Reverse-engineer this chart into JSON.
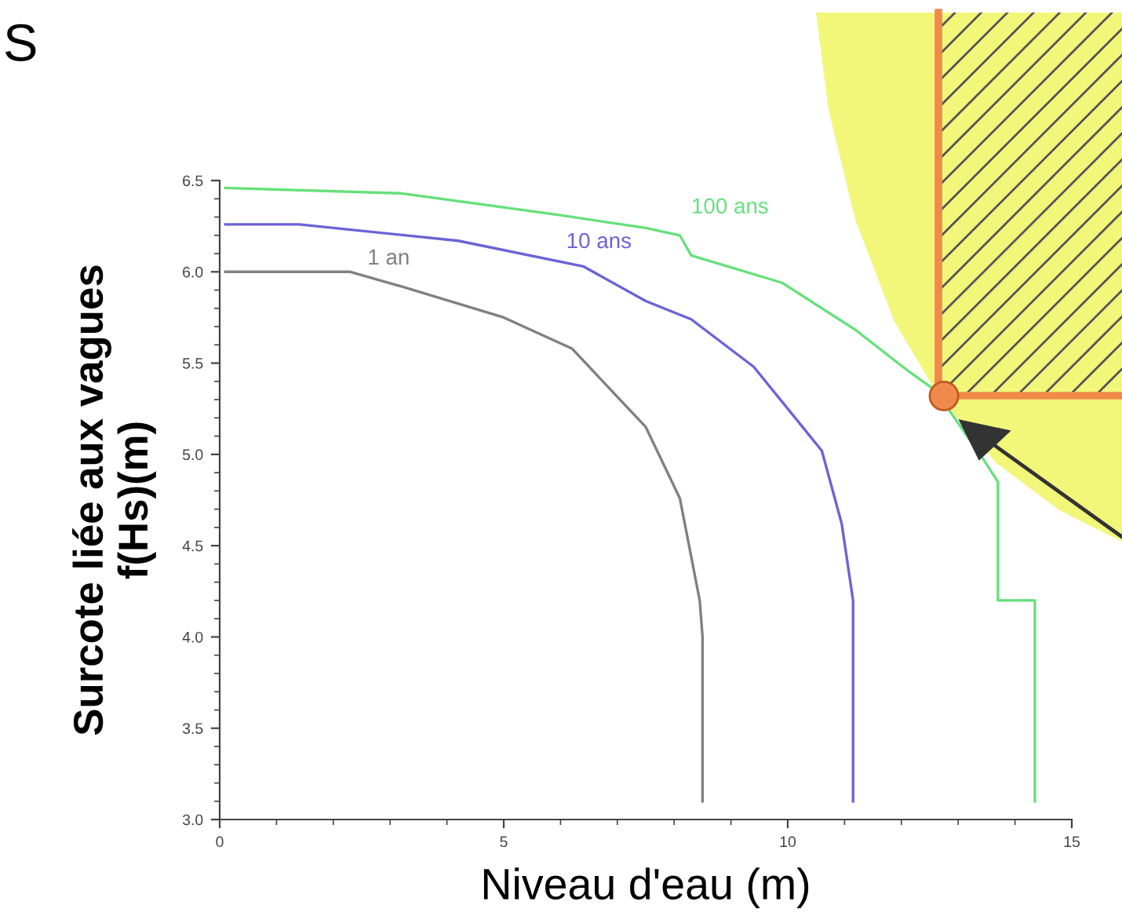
{
  "chart_data": {
    "type": "line",
    "title": "S",
    "xlabel": "Niveau d'eau (m)",
    "ylabel": "Surcote liée aux vagues\nf(Hs)(m)",
    "xlim": [
      0,
      15
    ],
    "xticks": [
      0,
      5,
      10,
      15
    ],
    "ylim": [
      3.0,
      6.5
    ],
    "yticks": [
      {
        "value": 3.0,
        "label": "3.0"
      },
      {
        "value": 3.5,
        "label": "3.5"
      },
      {
        "value": 4.0,
        "label": "4.0"
      },
      {
        "value": 4.5,
        "label": "4.5"
      },
      {
        "value": 5.0,
        "label": "5.0"
      },
      {
        "value": 5.5,
        "label": "5.5"
      },
      {
        "value": 6.0,
        "label": "6.0"
      },
      {
        "value": 6.5,
        "label": "6.5"
      }
    ],
    "grid": false,
    "marker": "none",
    "line_style": "solid",
    "series": [
      {
        "name": "1 an",
        "color": "#808080",
        "x": [
          0.1,
          2.3,
          3.2,
          5.0,
          6.2,
          7.5,
          8.1,
          8.45,
          8.5,
          8.5
        ],
        "values": [
          6.0,
          6.0,
          5.92,
          5.75,
          5.58,
          5.15,
          4.76,
          4.2,
          4.0,
          3.1
        ]
      },
      {
        "name": "10 ans",
        "color": "#6b63d6",
        "x": [
          0.1,
          1.4,
          4.2,
          6.4,
          7.5,
          8.3,
          9.4,
          10.6,
          10.95,
          11.15,
          11.15
        ],
        "values": [
          6.26,
          6.26,
          6.17,
          6.03,
          5.84,
          5.74,
          5.48,
          5.02,
          4.62,
          4.2,
          3.1
        ]
      },
      {
        "name": "100 ans",
        "color": "#66e07a",
        "x": [
          0.1,
          3.2,
          6.0,
          7.5,
          8.1,
          8.3,
          9.9,
          11.2,
          12.15,
          12.6,
          13.45,
          13.7,
          13.7,
          14.35,
          14.35
        ],
        "values": [
          6.46,
          6.43,
          6.31,
          6.24,
          6.2,
          6.09,
          5.94,
          5.68,
          5.45,
          5.35,
          4.97,
          4.85,
          4.2,
          4.2,
          3.1
        ]
      },
      {
        "type": "scatter",
        "marker": "circle",
        "color": "#f08a4b",
        "x": [
          12.75
        ],
        "values": [
          5.32
        ]
      }
    ]
  }
}
